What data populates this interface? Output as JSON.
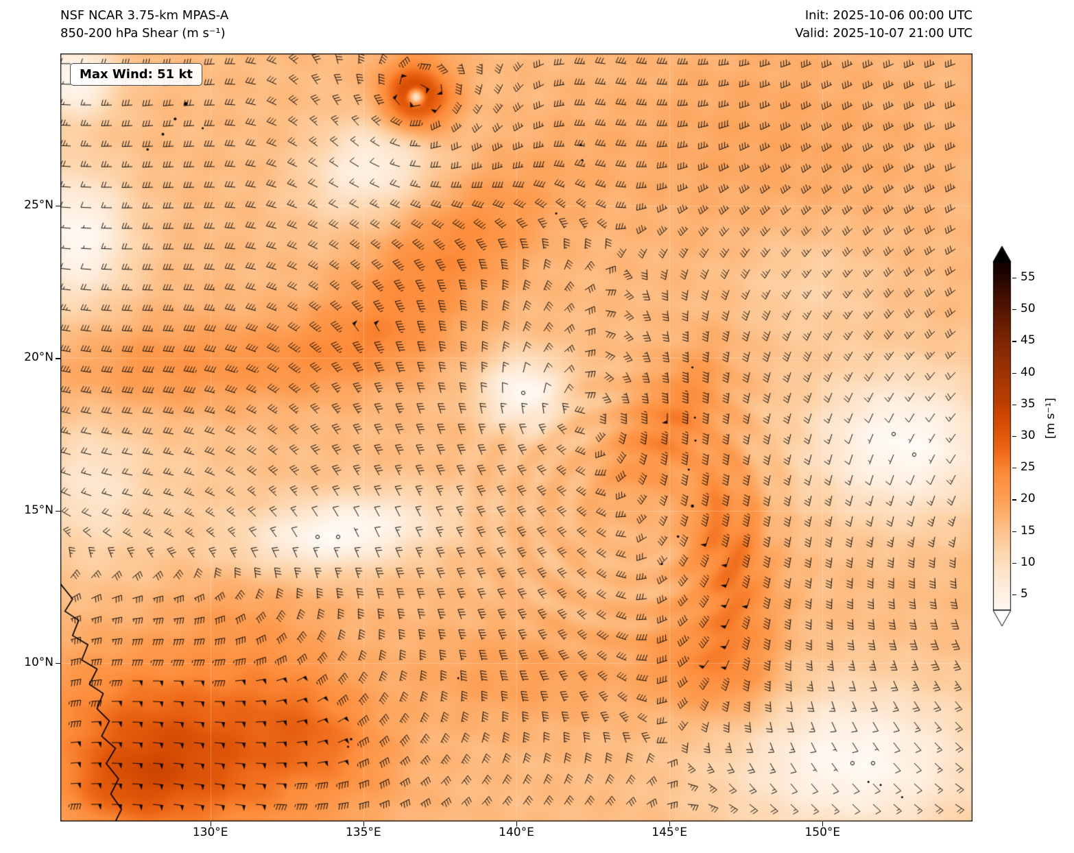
{
  "chart_data": {
    "type": "heatmap",
    "title": "NSF NCAR 3.75-km MPAS-A",
    "subtitle": "850-200 hPa Shear (m s⁻¹)",
    "init_label": "Init: 2025-10-06 00:00 UTC",
    "valid_label": "Valid: 2025-10-07 21:00 UTC",
    "annotation": "Max Wind: 51 kt",
    "x_axis": {
      "ticks": [
        {
          "label": "130°E",
          "value": 130
        },
        {
          "label": "135°E",
          "value": 135
        },
        {
          "label": "140°E",
          "value": 140
        },
        {
          "label": "145°E",
          "value": 145
        },
        {
          "label": "150°E",
          "value": 150
        }
      ]
    },
    "y_axis": {
      "ticks": [
        {
          "label": "25°N",
          "value": 25
        },
        {
          "label": "20°N",
          "value": 20
        },
        {
          "label": "15°N",
          "value": 15
        },
        {
          "label": "10°N",
          "value": 10
        }
      ]
    },
    "extent": {
      "lon_min": 125.1,
      "lon_max": 154.9,
      "lat_min": 4.8,
      "lat_max": 30.0
    },
    "grid_color": "rgba(255,255,255,0.25)",
    "colorbar": {
      "label": "[m s⁻¹]",
      "ticks": [
        5,
        10,
        15,
        20,
        25,
        30,
        35,
        40,
        45,
        50,
        55
      ],
      "vmin": 2.5,
      "vmax": 57.5,
      "stops": [
        [
          0,
          "#ffffff"
        ],
        [
          3,
          "#fff7ef"
        ],
        [
          6,
          "#feeedd"
        ],
        [
          9,
          "#fde3c8"
        ],
        [
          12,
          "#fdd5ab"
        ],
        [
          15,
          "#fdc38d"
        ],
        [
          18,
          "#fdae6b"
        ],
        [
          21,
          "#fd9a4d"
        ],
        [
          24,
          "#fd8d3c"
        ],
        [
          27,
          "#f1701e"
        ],
        [
          30,
          "#e2590b"
        ],
        [
          33,
          "#d04801"
        ],
        [
          36,
          "#b83d02"
        ],
        [
          39,
          "#a63603"
        ],
        [
          42,
          "#922f04"
        ],
        [
          45,
          "#7f2704"
        ],
        [
          48,
          "#671c02"
        ],
        [
          52,
          "#431001"
        ],
        [
          56,
          "#1c0400"
        ],
        [
          60,
          "#000000"
        ]
      ]
    },
    "field": {
      "base": 16,
      "blobs": [
        [
          129.0,
          7.2,
          15,
          3.2,
          2.0,
          -15
        ],
        [
          127.0,
          5.8,
          6,
          1.5,
          1.0,
          0
        ],
        [
          133.5,
          7.8,
          7,
          1.8,
          1.2,
          -35
        ],
        [
          131.0,
          11.5,
          4,
          2.2,
          1.5,
          -20
        ],
        [
          128.5,
          19.7,
          6,
          2.8,
          1.1,
          3
        ],
        [
          134.5,
          20.3,
          5,
          2.5,
          0.9,
          8
        ],
        [
          137.5,
          23.2,
          8,
          3.0,
          1.2,
          38
        ],
        [
          136.7,
          28.55,
          20,
          0.85,
          0.85,
          0
        ],
        [
          136.7,
          28.6,
          -26,
          0.17,
          0.17,
          0
        ],
        [
          148.0,
          27.0,
          3,
          4.0,
          2.5,
          0
        ],
        [
          146.9,
          13.5,
          10,
          0.95,
          2.6,
          8
        ],
        [
          144.8,
          17.8,
          8,
          1.9,
          0.85,
          55
        ],
        [
          146.2,
          9.8,
          7,
          1.6,
          1.2,
          -25
        ],
        [
          140.0,
          9.6,
          4,
          2.8,
          1.2,
          0
        ],
        [
          134.3,
          14.3,
          -14,
          2.3,
          0.85,
          8
        ],
        [
          125.6,
          24.0,
          -13.5,
          1.3,
          1.6,
          0
        ],
        [
          140.2,
          18.9,
          -13.5,
          1.0,
          0.9,
          0
        ],
        [
          152.6,
          17.2,
          -14,
          2.2,
          1.7,
          0
        ],
        [
          151.0,
          6.8,
          -13.5,
          3.0,
          1.8,
          0
        ],
        [
          135.3,
          26.4,
          -11,
          1.6,
          1.1,
          25
        ],
        [
          125.5,
          29.2,
          -13.5,
          1.0,
          0.9,
          0
        ],
        [
          126.0,
          16.0,
          -6,
          1.1,
          1.6,
          0
        ],
        [
          128.0,
          15.0,
          -3,
          2.5,
          2.5,
          0
        ],
        [
          149.5,
          22.5,
          -4,
          1.8,
          1.4,
          0
        ]
      ],
      "texture": {
        "wave_amp": 0.7,
        "ring_center": [
          143.8,
          15.0
        ],
        "ring_freq": 5.2,
        "ring_amp": 1.3
      }
    },
    "wind": {
      "background": {
        "u_amp": 9,
        "lat0": 13.5,
        "lat_scale": 5.5,
        "v_amp": 2.5,
        "lon_scale": 3.5
      },
      "vortices": [
        [
          136.7,
          28.6,
          18,
          1.2
        ],
        [
          141.0,
          18.0,
          7,
          3.5
        ],
        [
          144.3,
          13.5,
          6,
          4.0
        ]
      ],
      "barb_spacing_px": 30,
      "calm_threshold_kt": 5,
      "kt_per_ms": 1.94,
      "max_kt": 51
    },
    "coastlines": {
      "luzon": [
        [
          125.1,
          12.6
        ],
        [
          125.5,
          12.1
        ],
        [
          125.25,
          11.7
        ],
        [
          125.7,
          11.4
        ],
        [
          125.5,
          10.9
        ],
        [
          126.0,
          10.6
        ],
        [
          125.8,
          10.1
        ],
        [
          126.3,
          9.8
        ],
        [
          126.05,
          9.3
        ],
        [
          126.5,
          9.0
        ],
        [
          126.3,
          8.5
        ],
        [
          126.7,
          8.1
        ],
        [
          126.45,
          7.6
        ],
        [
          126.9,
          7.2
        ],
        [
          126.6,
          6.7
        ],
        [
          127.0,
          6.2
        ],
        [
          126.75,
          5.7
        ],
        [
          127.1,
          5.2
        ],
        [
          126.9,
          4.8
        ]
      ],
      "island_dots": [
        [
          129.2,
          28.35,
          2.5
        ],
        [
          128.85,
          27.85,
          2
        ],
        [
          128.45,
          27.35,
          2
        ],
        [
          127.95,
          26.85,
          1.8
        ],
        [
          129.75,
          27.55,
          1.5
        ],
        [
          142.1,
          27.0,
          1.8
        ],
        [
          142.15,
          26.5,
          1.5
        ],
        [
          141.3,
          24.75,
          1.5
        ],
        [
          145.75,
          15.15,
          2.2
        ],
        [
          145.28,
          14.15,
          1.8
        ],
        [
          144.75,
          13.25,
          1.6
        ],
        [
          145.63,
          16.35,
          1.5
        ],
        [
          145.85,
          17.3,
          1.5
        ],
        [
          145.83,
          18.05,
          1.5
        ],
        [
          145.75,
          19.7,
          1.5
        ],
        [
          134.6,
          7.5,
          1.8
        ],
        [
          134.5,
          7.25,
          1.5
        ],
        [
          138.1,
          9.5,
          1.5
        ],
        [
          151.5,
          6.1,
          1.5
        ],
        [
          151.9,
          6.0,
          1.5
        ],
        [
          152.6,
          5.6,
          1.5
        ]
      ]
    }
  }
}
